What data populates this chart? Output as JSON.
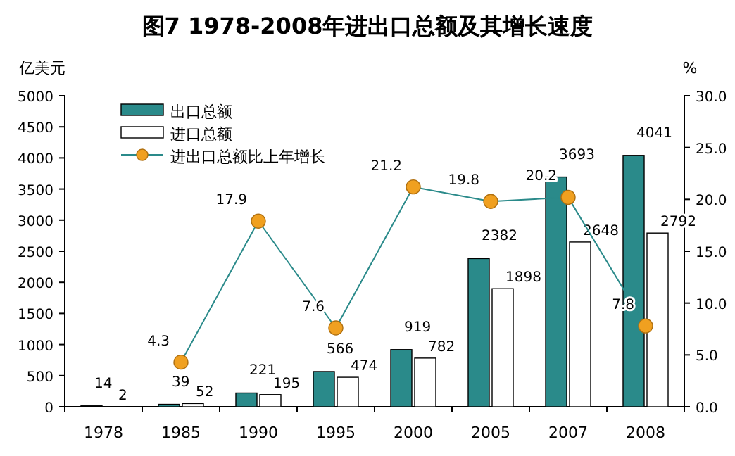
{
  "chart_data": {
    "type": "bar",
    "title": "图7 1978-2008年进出口总额及其增长速度",
    "ylabel": "亿美元",
    "y2label": "%",
    "categories": [
      "1978",
      "1985",
      "1990",
      "1995",
      "2000",
      "2005",
      "2007",
      "2008"
    ],
    "series": [
      {
        "name": "出口总额",
        "color": "#2a8a8a",
        "values": [
          14,
          39,
          221,
          566,
          919,
          2382,
          3693,
          4041
        ]
      },
      {
        "name": "进口总额",
        "color": "#ffffff",
        "values": [
          2,
          52,
          195,
          474,
          782,
          1898,
          2648,
          2792
        ]
      },
      {
        "name": "进出口总额比上年增长",
        "type": "line",
        "axis": "y2",
        "color": "#f0a020",
        "marker": "circle",
        "values": [
          null,
          4.3,
          17.9,
          7.6,
          21.2,
          19.8,
          20.2,
          7.8
        ]
      }
    ],
    "ylim": [
      0,
      5000
    ],
    "yticks": [
      0,
      500,
      1000,
      1500,
      2000,
      2500,
      3000,
      3500,
      4000,
      4500,
      5000
    ],
    "y2lim": [
      0,
      30
    ],
    "y2ticks": [
      {
        "value": 0,
        "label": "0.0"
      },
      {
        "value": 5,
        "label": "5.0"
      },
      {
        "value": 10,
        "label": "10.0"
      },
      {
        "value": 15,
        "label": "15.0"
      },
      {
        "value": 20,
        "label": "20.0"
      },
      {
        "value": 25,
        "label": "25.0"
      },
      {
        "value": 30,
        "label": "30.0"
      }
    ],
    "data_labels": true,
    "legend": "top left",
    "grid": false
  }
}
